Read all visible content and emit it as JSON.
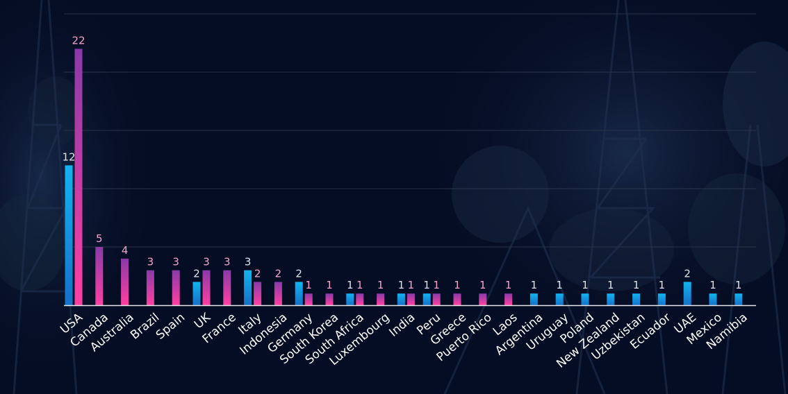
{
  "chart_data": {
    "type": "bar",
    "title": "",
    "xlabel": "",
    "ylabel": "",
    "ylim": [
      0,
      25
    ],
    "y_gridlines": [
      0,
      5,
      10,
      15,
      20,
      25
    ],
    "grid": true,
    "legend": "none",
    "categories": [
      "USA",
      "Canada",
      "Australia",
      "Brazil",
      "Spain",
      "UK",
      "France",
      "Italy",
      "Indonesia",
      "Germany",
      "South Korea",
      "South Africa",
      "Luxembourg",
      "India",
      "Peru",
      "Greece",
      "Puerto Rico",
      "Laos",
      "Argentina",
      "Uruguay",
      "Poland",
      "New Zealand",
      "Uzbekistan",
      "Ecuador",
      "UAE",
      "Mexico",
      "Namibia"
    ],
    "series": [
      {
        "values": [
          12,
          null,
          null,
          null,
          null,
          2,
          null,
          3,
          null,
          2,
          null,
          1,
          null,
          1,
          1,
          null,
          null,
          null,
          1,
          1,
          1,
          1,
          1,
          1,
          2,
          1,
          1
        ]
      },
      {
        "values": [
          22,
          5,
          4,
          3,
          3,
          3,
          3,
          2,
          2,
          1,
          1,
          1,
          1,
          1,
          1,
          1,
          1,
          1,
          null,
          null,
          null,
          null,
          null,
          null,
          null,
          null,
          null
        ]
      }
    ]
  },
  "colors": {
    "background": "#050d24",
    "gridline": "#2a3348",
    "axis": "#e6e8ee",
    "blue_top": "#13b4f0",
    "blue_bottom": "#1470c8",
    "pink_top": "#8a3aa8",
    "pink_bottom": "#ff3fa2",
    "blue_label": "#dfe4ea",
    "pink_label": "#f7a3c9"
  }
}
